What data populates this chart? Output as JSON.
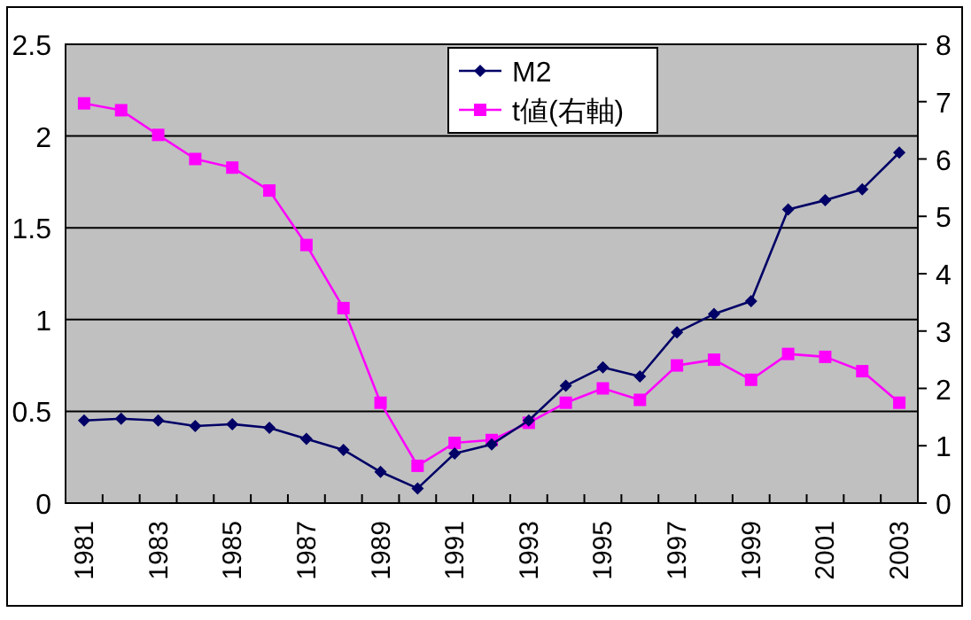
{
  "chart_data": {
    "type": "line",
    "categories": [
      "1981",
      null,
      "1983",
      null,
      "1985",
      null,
      "1987",
      null,
      "1989",
      null,
      "1991",
      null,
      "1993",
      null,
      "1995",
      null,
      "1997",
      null,
      "1999",
      null,
      "2001",
      null,
      "2003"
    ],
    "series": [
      {
        "name": "M2",
        "color": "#000066",
        "marker": "diamond",
        "values": [
          0.45,
          0.46,
          0.45,
          0.42,
          0.43,
          0.41,
          0.35,
          0.29,
          0.17,
          0.08,
          0.27,
          0.32,
          0.45,
          0.64,
          0.74,
          0.69,
          0.93,
          1.03,
          1.1,
          1.6,
          1.65,
          1.71,
          1.91
        ]
      },
      {
        "name": "t値(右軸)",
        "color": "#ff00ff",
        "marker": "square",
        "axis": "y2",
        "values": [
          6.97,
          6.85,
          6.42,
          6.0,
          5.85,
          5.45,
          4.5,
          3.4,
          1.75,
          0.65,
          1.05,
          1.1,
          1.4,
          1.75,
          2.0,
          1.8,
          2.4,
          2.5,
          2.15,
          2.6,
          2.55,
          2.3,
          1.75
        ]
      }
    ],
    "ylim": [
      0,
      2.5
    ],
    "yticks": [
      0,
      0.5,
      1,
      1.5,
      2,
      2.5
    ],
    "y2lim": [
      0,
      8
    ],
    "y2ticks": [
      0,
      1,
      2,
      3,
      4,
      5,
      6,
      7,
      8
    ],
    "grid": "y",
    "legend": "top"
  }
}
